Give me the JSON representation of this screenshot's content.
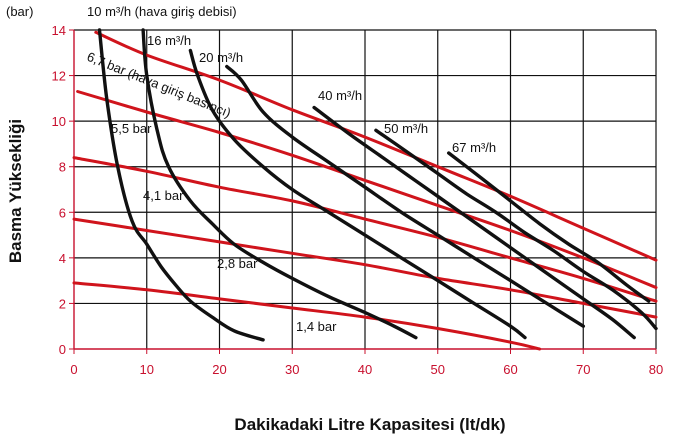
{
  "chart_data": {
    "type": "line",
    "title": "",
    "xlabel": "Dakikadaki Litre Kapasitesi (lt/dk)",
    "ylabel": "Basma Yüksekliği",
    "y_unit": "(bar)",
    "xlim": [
      0,
      80
    ],
    "ylim": [
      0,
      14
    ],
    "x_ticks": [
      "0",
      "10",
      "20",
      "30",
      "40",
      "50",
      "60",
      "70",
      "80"
    ],
    "y_ticks": [
      "0",
      "2",
      "4",
      "6",
      "8",
      "10",
      "12",
      "14"
    ],
    "grid": true,
    "colors": {
      "air_flow": "#111111",
      "air_pressure": "#d0141c",
      "axis": "#c8102e",
      "grid": "#111111"
    },
    "air_flow_series": [
      {
        "name": "10 m³/h (hava giriş debisi)",
        "x": [
          3.5,
          4.5,
          6,
          8,
          10,
          12,
          14,
          16,
          19,
          22,
          26
        ],
        "y": [
          14,
          11,
          8,
          5.6,
          4.6,
          3.6,
          2.8,
          2.1,
          1.4,
          0.8,
          0.4
        ]
      },
      {
        "name": "16 m³/h",
        "x": [
          9.5,
          10,
          11.5,
          13,
          16,
          19,
          22,
          26,
          30,
          35,
          40,
          44,
          47
        ],
        "y": [
          14,
          12,
          9.5,
          8,
          6.5,
          5.5,
          4.6,
          3.8,
          3.1,
          2.3,
          1.6,
          1.0,
          0.5
        ]
      },
      {
        "name": "20 m³/h",
        "x": [
          16,
          17,
          19,
          22,
          26,
          30,
          35,
          40,
          45,
          50,
          55,
          60,
          62
        ],
        "y": [
          13.1,
          12,
          10.5,
          9.2,
          8,
          7,
          6,
          5,
          4,
          3,
          2,
          1,
          0.5
        ]
      },
      {
        "name": "",
        "x": [
          21,
          23,
          26,
          30,
          35,
          40,
          45,
          50,
          55,
          60,
          65,
          70
        ],
        "y": [
          12.4,
          11.8,
          10.4,
          9.3,
          8.2,
          7.1,
          6,
          5,
          4,
          3,
          2,
          1
        ]
      },
      {
        "name": "40 m³/h",
        "x": [
          33,
          38,
          42,
          46,
          50,
          54,
          58,
          62,
          66,
          70,
          74,
          77
        ],
        "y": [
          10.6,
          9.4,
          8.5,
          7.6,
          6.7,
          5.8,
          4.9,
          4,
          3.1,
          2.2,
          1.3,
          0.5
        ]
      },
      {
        "name": "50 m³/h",
        "x": [
          41.5,
          46,
          50,
          54,
          58,
          62,
          66,
          70,
          74,
          78,
          80
        ],
        "y": [
          9.6,
          8.6,
          7.7,
          6.8,
          6,
          5.1,
          4.3,
          3.4,
          2.6,
          1.6,
          0.9
        ]
      },
      {
        "name": "67 m³/h",
        "x": [
          51.5,
          56,
          60,
          64,
          68,
          72,
          76,
          79
        ],
        "y": [
          8.6,
          7.5,
          6.5,
          5.5,
          4.6,
          3.8,
          2.8,
          2.1
        ]
      }
    ],
    "air_pressure_series": [
      {
        "name": "6,7 bar (hava giriş basıncı)",
        "x": [
          3,
          10,
          20,
          30,
          40,
          50,
          60,
          70,
          80
        ],
        "y": [
          13.9,
          12.9,
          11.8,
          10.5,
          9.3,
          8,
          6.7,
          5.3,
          3.9
        ]
      },
      {
        "name": "5,5 bar",
        "x": [
          0.5,
          10,
          20,
          30,
          40,
          50,
          60,
          70,
          80
        ],
        "y": [
          11.3,
          10.4,
          9.5,
          8.5,
          7.4,
          6.3,
          5.2,
          4,
          2.7
        ]
      },
      {
        "name": "4,1 bar",
        "x": [
          0,
          10,
          20,
          30,
          40,
          50,
          60,
          70,
          80
        ],
        "y": [
          8.4,
          7.8,
          7.1,
          6.5,
          5.7,
          4.9,
          4,
          3.1,
          2.1
        ]
      },
      {
        "name": "2,8 bar",
        "x": [
          0,
          10,
          20,
          30,
          40,
          50,
          60,
          70,
          80
        ],
        "y": [
          5.7,
          5.2,
          4.7,
          4.2,
          3.7,
          3.1,
          2.6,
          2,
          1.4
        ]
      },
      {
        "name": "1,4 bar",
        "x": [
          0,
          10,
          20,
          30,
          40,
          50,
          60,
          64
        ],
        "y": [
          2.9,
          2.6,
          2.2,
          1.8,
          1.4,
          0.9,
          0.3,
          0
        ]
      }
    ]
  }
}
